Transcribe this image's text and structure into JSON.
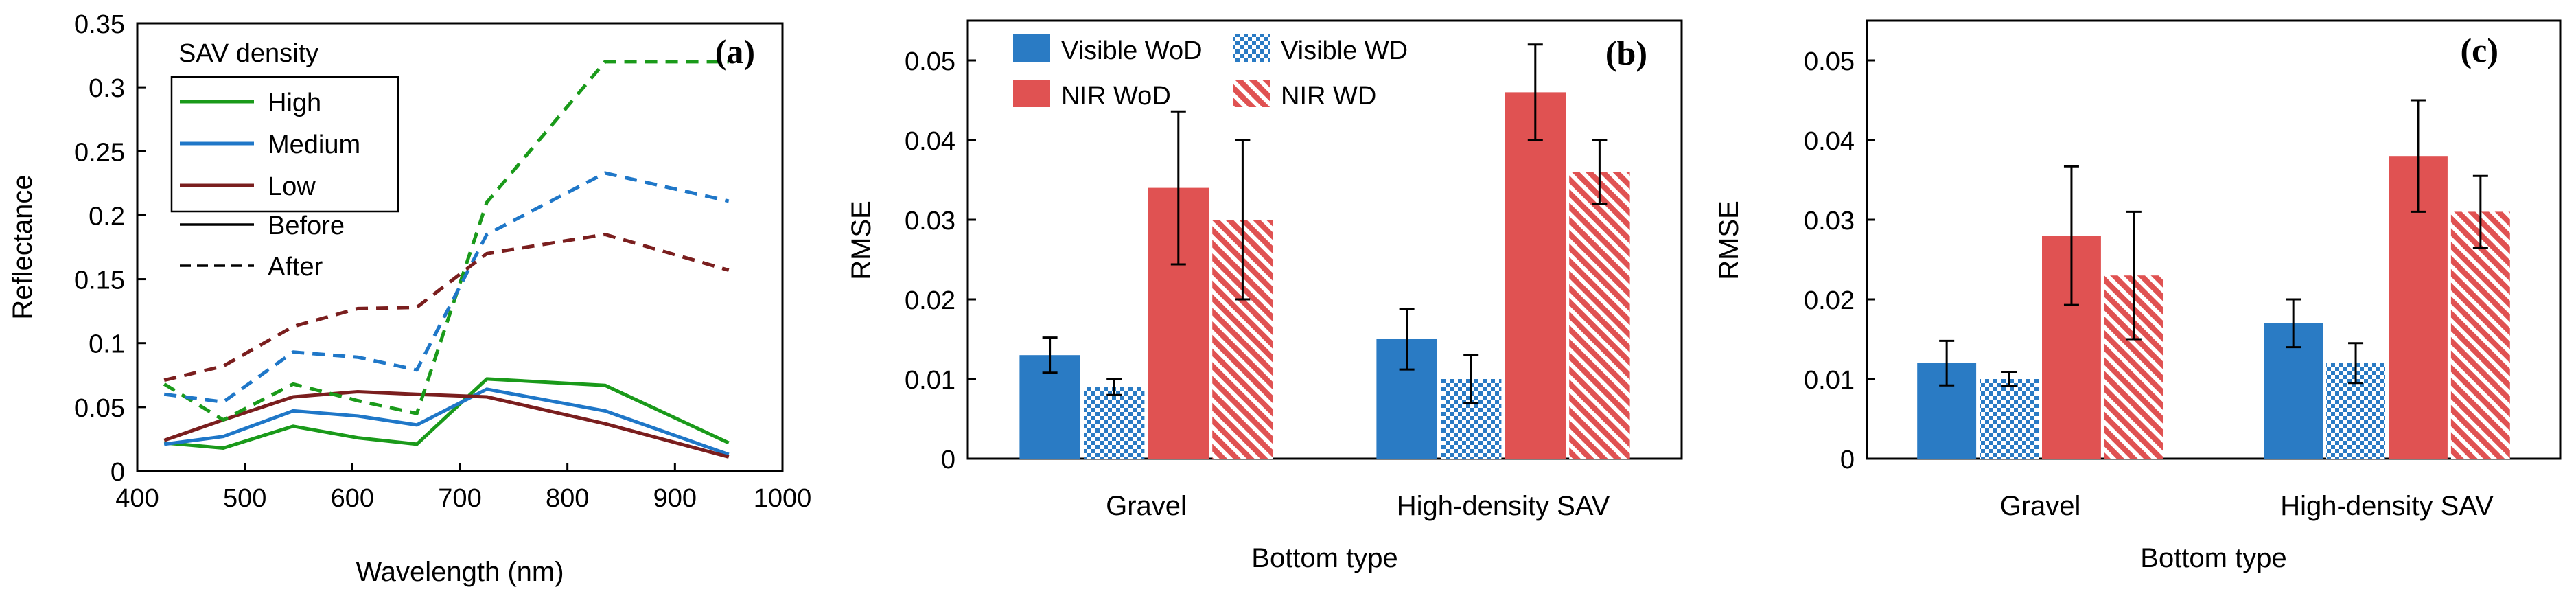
{
  "chart_data": [
    {
      "type": "line",
      "panel_label": "(a)",
      "title": "",
      "xlabel": "Wavelength (nm)",
      "ylabel": "Reflectance",
      "xlim": [
        400,
        1000
      ],
      "ylim": [
        0,
        0.35
      ],
      "xticks": [
        400,
        500,
        600,
        700,
        800,
        900,
        1000
      ],
      "xtick_labels": [
        "400",
        "500",
        "600",
        "700",
        "800",
        "900",
        "1000"
      ],
      "yticks": [
        0,
        0.05,
        0.1,
        0.15,
        0.2,
        0.25,
        0.3,
        0.35
      ],
      "ytick_labels": [
        "0",
        "0.05",
        "0.1",
        "0.15",
        "0.2",
        "0.25",
        "0.3",
        "0.35"
      ],
      "grid": false,
      "legend_title": "SAV density",
      "legend_position": "top-left",
      "legend": [
        {
          "label": "High",
          "color": "#1a9a1a",
          "dash": "solid"
        },
        {
          "label": "Medium",
          "color": "#1f77c8",
          "dash": "solid"
        },
        {
          "label": "Low",
          "color": "#7a1e1e",
          "dash": "solid"
        },
        {
          "label": "Before",
          "color": "#000000",
          "dash": "solid"
        },
        {
          "label": "After",
          "color": "#000000",
          "dash": "dashed"
        }
      ],
      "x": [
        425,
        480,
        545,
        605,
        660,
        725,
        835,
        950
      ],
      "series": [
        {
          "density": "High",
          "state": "Before",
          "color": "#1a9a1a",
          "dash": "solid",
          "values": [
            0.022,
            0.018,
            0.035,
            0.026,
            0.021,
            0.072,
            0.067,
            0.022
          ]
        },
        {
          "density": "Medium",
          "state": "Before",
          "color": "#1f77c8",
          "dash": "solid",
          "values": [
            0.021,
            0.027,
            0.047,
            0.043,
            0.036,
            0.064,
            0.047,
            0.013
          ]
        },
        {
          "density": "Low",
          "state": "Before",
          "color": "#7a1e1e",
          "dash": "solid",
          "values": [
            0.024,
            0.04,
            0.058,
            0.062,
            0.06,
            0.058,
            0.037,
            0.011
          ]
        },
        {
          "density": "High",
          "state": "After",
          "color": "#1a9a1a",
          "dash": "dashed",
          "values": [
            0.068,
            0.04,
            0.068,
            0.055,
            0.045,
            0.21,
            0.32,
            0.32
          ]
        },
        {
          "density": "Medium",
          "state": "After",
          "color": "#1f77c8",
          "dash": "dashed",
          "values": [
            0.06,
            0.054,
            0.093,
            0.089,
            0.079,
            0.185,
            0.233,
            0.211
          ]
        },
        {
          "density": "Low",
          "state": "After",
          "color": "#7a1e1e",
          "dash": "dashed",
          "values": [
            0.071,
            0.082,
            0.113,
            0.127,
            0.128,
            0.17,
            0.185,
            0.157
          ]
        }
      ]
    },
    {
      "type": "bar",
      "panel_label": "(b)",
      "title": "",
      "xlabel": "Bottom type",
      "ylabel": "RMSE",
      "ylim": [
        0,
        0.055
      ],
      "yticks": [
        0,
        0.01,
        0.02,
        0.03,
        0.04,
        0.05
      ],
      "ytick_labels": [
        "0",
        "0.01",
        "0.02",
        "0.03",
        "0.04",
        "0.05"
      ],
      "grid": false,
      "legend_position": "top-left",
      "categories": [
        "Gravel",
        "High-density SAV"
      ],
      "series": [
        {
          "name": "Visible WoD",
          "color": "#2a7bc4",
          "pattern": "solid",
          "values": [
            0.013,
            0.015
          ],
          "errors": [
            0.0022,
            0.0038
          ]
        },
        {
          "name": "Visible WD",
          "color": "#2a7bc4",
          "pattern": "checker",
          "values": [
            0.009,
            0.01
          ],
          "errors": [
            0.001,
            0.003
          ]
        },
        {
          "name": "NIR WoD",
          "color": "#e05252",
          "pattern": "solid",
          "values": [
            0.034,
            0.046
          ],
          "errors": [
            0.0096,
            0.006
          ]
        },
        {
          "name": "NIR WD",
          "color": "#e05252",
          "pattern": "diagonal",
          "values": [
            0.03,
            0.036
          ],
          "errors": [
            0.01,
            0.004
          ]
        }
      ]
    },
    {
      "type": "bar",
      "panel_label": "(c)",
      "title": "",
      "xlabel": "Bottom type",
      "ylabel": "RMSE",
      "ylim": [
        0,
        0.055
      ],
      "yticks": [
        0,
        0.01,
        0.02,
        0.03,
        0.04,
        0.05
      ],
      "ytick_labels": [
        "0",
        "0.01",
        "0.02",
        "0.03",
        "0.04",
        "0.05"
      ],
      "grid": false,
      "categories": [
        "Gravel",
        "High-density SAV"
      ],
      "series": [
        {
          "name": "Visible WoD",
          "color": "#2a7bc4",
          "pattern": "solid",
          "values": [
            0.012,
            0.017
          ],
          "errors": [
            0.0028,
            0.003
          ]
        },
        {
          "name": "Visible WD",
          "color": "#2a7bc4",
          "pattern": "checker",
          "values": [
            0.01,
            0.012
          ],
          "errors": [
            0.0009,
            0.0025
          ]
        },
        {
          "name": "NIR WoD",
          "color": "#e05252",
          "pattern": "solid",
          "values": [
            0.028,
            0.038
          ],
          "errors": [
            0.0087,
            0.007
          ]
        },
        {
          "name": "NIR WD",
          "color": "#e05252",
          "pattern": "diagonal",
          "values": [
            0.023,
            0.031
          ],
          "errors": [
            0.008,
            0.0045
          ]
        }
      ]
    }
  ]
}
